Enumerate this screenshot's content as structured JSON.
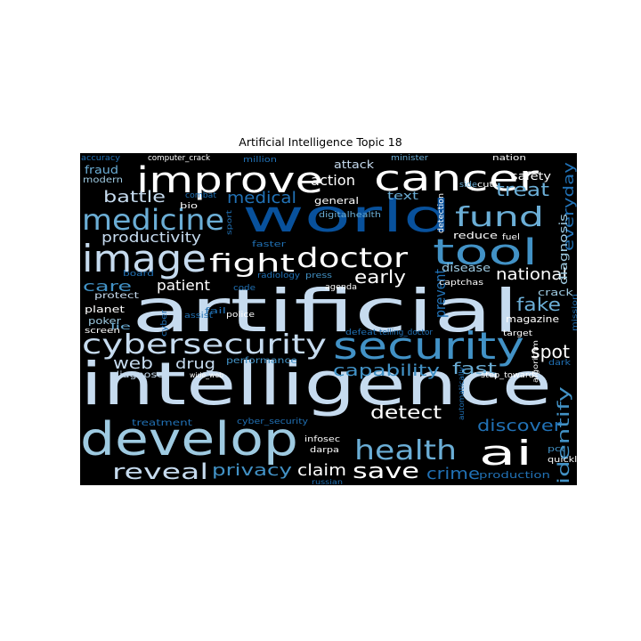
{
  "figure": {
    "title": "Artificial Intelligence Topic 18"
  },
  "colors": {
    "background": "#000000",
    "white": "#ffffff",
    "pale_blue": "#c6dbef",
    "light_blue": "#9ecae1",
    "mid_blue": "#6baed6",
    "blue": "#4292c6",
    "deep_blue": "#2171b5",
    "dark_blue": "#08519c",
    "navy": "#08306b"
  },
  "words": [
    {
      "text": "artificial",
      "color": "#c6dbef"
    },
    {
      "text": "intelligence",
      "color": "#c6dbef"
    },
    {
      "text": "develop",
      "color": "#9ecae1"
    },
    {
      "text": "world",
      "color": "#08519c"
    },
    {
      "text": "security",
      "color": "#4292c6"
    },
    {
      "text": "cybersecurity",
      "color": "#c6dbef"
    },
    {
      "text": "improve",
      "color": "#ffffff"
    },
    {
      "text": "cancer",
      "color": "#ffffff"
    },
    {
      "text": "tool",
      "color": "#4292c6"
    },
    {
      "text": "image",
      "color": "#c6dbef"
    },
    {
      "text": "medicine",
      "color": "#6baed6"
    },
    {
      "text": "fund",
      "color": "#6baed6"
    },
    {
      "text": "doctor",
      "color": "#ffffff"
    },
    {
      "text": "fight",
      "color": "#ffffff"
    },
    {
      "text": "ai",
      "color": "#ffffff"
    },
    {
      "text": "health",
      "color": "#6baed6"
    },
    {
      "text": "reveal",
      "color": "#c6dbef"
    },
    {
      "text": "save",
      "color": "#ffffff"
    },
    {
      "text": "identify",
      "color": "#4292c6"
    },
    {
      "text": "prevent",
      "color": "#2171b5"
    },
    {
      "text": "battle",
      "color": "#c6dbef"
    },
    {
      "text": "medical",
      "color": "#2171b5"
    },
    {
      "text": "productivity",
      "color": "#c6dbef"
    },
    {
      "text": "patient",
      "color": "#ffffff"
    },
    {
      "text": "early",
      "color": "#ffffff"
    },
    {
      "text": "national",
      "color": "#ffffff"
    },
    {
      "text": "treat",
      "color": "#6baed6"
    },
    {
      "text": "everyday",
      "color": "#2171b5"
    },
    {
      "text": "care",
      "color": "#4292c6"
    },
    {
      "text": "fake",
      "color": "#6baed6"
    },
    {
      "text": "spot",
      "color": "#ffffff"
    },
    {
      "text": "web",
      "color": "#c6dbef"
    },
    {
      "text": "drug",
      "color": "#c6dbef"
    },
    {
      "text": "capability",
      "color": "#4292c6"
    },
    {
      "text": "fast",
      "color": "#6baed6"
    },
    {
      "text": "detect",
      "color": "#ffffff"
    },
    {
      "text": "discover",
      "color": "#2171b5"
    },
    {
      "text": "privacy",
      "color": "#4292c6"
    },
    {
      "text": "claim",
      "color": "#ffffff"
    },
    {
      "text": "crime",
      "color": "#2171b5"
    },
    {
      "text": "action",
      "color": "#ffffff"
    },
    {
      "text": "attack",
      "color": "#c6dbef"
    },
    {
      "text": "safety",
      "color": "#ffffff"
    },
    {
      "text": "text",
      "color": "#6baed6"
    },
    {
      "text": "general",
      "color": "#ffffff"
    },
    {
      "text": "digitalhealth",
      "color": "#6baed6"
    },
    {
      "text": "diagnosis",
      "color": "#9ecae1"
    },
    {
      "text": "reduce",
      "color": "#ffffff"
    },
    {
      "text": "disease",
      "color": "#9ecae1"
    },
    {
      "text": "captchas",
      "color": "#ffffff"
    },
    {
      "text": "crack",
      "color": "#9ecae1"
    },
    {
      "text": "magazine",
      "color": "#ffffff"
    },
    {
      "text": "performance",
      "color": "#4292c6"
    },
    {
      "text": "diagnose",
      "color": "#c6dbef"
    },
    {
      "text": "planet",
      "color": "#ffffff"
    },
    {
      "text": "poker",
      "color": "#9ecae1"
    },
    {
      "text": "lie",
      "color": "#6baed6"
    },
    {
      "text": "screen",
      "color": "#ffffff"
    },
    {
      "text": "protect",
      "color": "#c6dbef"
    },
    {
      "text": "fraud",
      "color": "#6baed6"
    },
    {
      "text": "modern",
      "color": "#9ecae1"
    },
    {
      "text": "accuracy",
      "color": "#2171b5"
    },
    {
      "text": "computer_crack",
      "color": "#ffffff"
    },
    {
      "text": "million",
      "color": "#2171b5"
    },
    {
      "text": "minister",
      "color": "#6baed6"
    },
    {
      "text": "nation",
      "color": "#ffffff"
    },
    {
      "text": "combat",
      "color": "#2171b5"
    },
    {
      "text": "bio",
      "color": "#ffffff"
    },
    {
      "text": "faster",
      "color": "#2171b5"
    },
    {
      "text": "board",
      "color": "#2171b5"
    },
    {
      "text": "code",
      "color": "#2171b5"
    },
    {
      "text": "radiology",
      "color": "#2171b5"
    },
    {
      "text": "press",
      "color": "#4292c6"
    },
    {
      "text": "agenda",
      "color": "#ffffff"
    },
    {
      "text": "sport",
      "color": "#2171b5"
    },
    {
      "text": "detection",
      "color": "#ffffff"
    },
    {
      "text": "side",
      "color": "#6baed6"
    },
    {
      "text": "cut",
      "color": "#ffffff"
    },
    {
      "text": "fuel",
      "color": "#ffffff"
    },
    {
      "text": "assist",
      "color": "#2171b5"
    },
    {
      "text": "cyber",
      "color": "#2171b5"
    },
    {
      "text": "police",
      "color": "#ffffff"
    },
    {
      "text": "defeat",
      "color": "#2171b5"
    },
    {
      "text": "telling_doctor",
      "color": "#2171b5"
    },
    {
      "text": "target",
      "color": "#ffffff"
    },
    {
      "text": "mission",
      "color": "#2171b5"
    },
    {
      "text": "algorithm",
      "color": "#ffffff"
    },
    {
      "text": "dark",
      "color": "#2171b5"
    },
    {
      "text": "step_toward",
      "color": "#ffffff"
    },
    {
      "text": "automatically",
      "color": "#2171b5"
    },
    {
      "text": "treatment",
      "color": "#2171b5"
    },
    {
      "text": "cyber_security",
      "color": "#2171b5"
    },
    {
      "text": "infosec",
      "color": "#ffffff"
    },
    {
      "text": "darpa",
      "color": "#ffffff"
    },
    {
      "text": "pct",
      "color": "#4292c6"
    },
    {
      "text": "quickly",
      "color": "#ffffff"
    },
    {
      "text": "production",
      "color": "#2171b5"
    },
    {
      "text": "russian",
      "color": "#2171b5"
    },
    {
      "text": "wide_web",
      "color": "#ffffff"
    },
    {
      "text": "fail",
      "color": "#2171b5"
    }
  ]
}
